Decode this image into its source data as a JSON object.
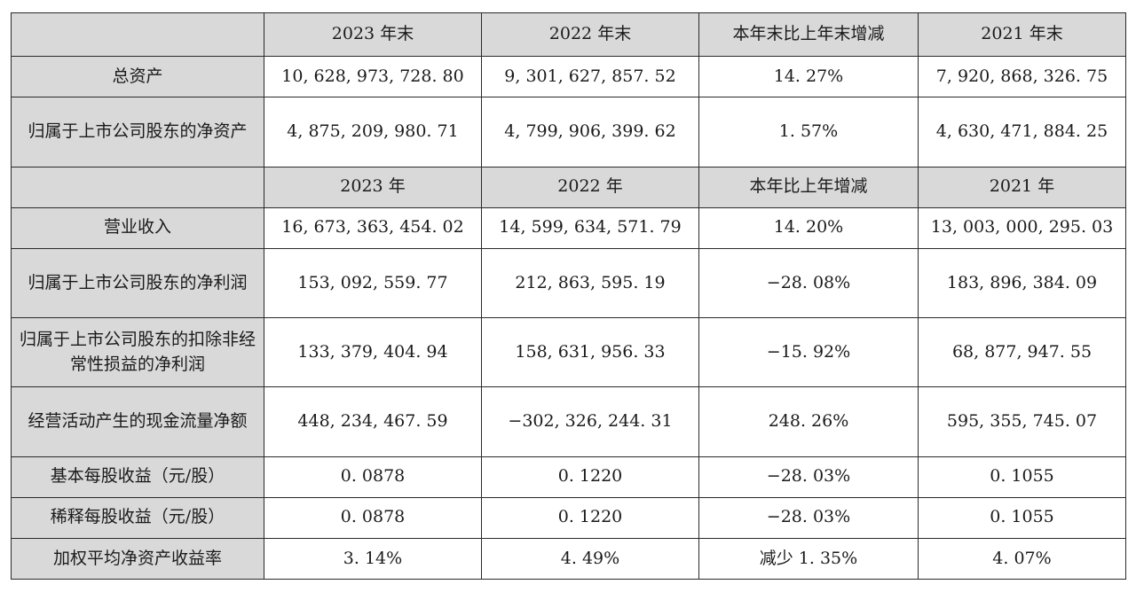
{
  "header1": {
    "corner": "",
    "cols": [
      "2023 年末",
      "2022 年末",
      "本年末比上年末增减",
      "2021 年末"
    ]
  },
  "balance_rows": [
    {
      "label": "总资产",
      "values": [
        "10, 628, 973, 728. 80",
        "9, 301, 627, 857. 52",
        "14. 27%",
        "7, 920, 868, 326. 75"
      ]
    },
    {
      "label": "归属于上市公司股东的净资产",
      "values": [
        "4, 875, 209, 980. 71",
        "4, 799, 906, 399. 62",
        "1. 57%",
        "4, 630, 471, 884. 25"
      ]
    }
  ],
  "header2": {
    "corner": "",
    "cols": [
      "2023 年",
      "2022 年",
      "本年比上年增减",
      "2021 年"
    ]
  },
  "income_rows": [
    {
      "label": "营业收入",
      "values": [
        "16, 673, 363, 454. 02",
        "14, 599, 634, 571. 79",
        "14. 20%",
        "13, 003, 000, 295. 03"
      ]
    },
    {
      "label": "归属于上市公司股东的净利润",
      "values": [
        "153, 092, 559. 77",
        "212, 863, 595. 19",
        "−28. 08%",
        "183, 896, 384. 09"
      ]
    },
    {
      "label": "归属于上市公司股东的扣除非经常性损益的净利润",
      "values": [
        "133, 379, 404. 94",
        "158, 631, 956. 33",
        "−15. 92%",
        "68, 877, 947. 55"
      ]
    },
    {
      "label": "经营活动产生的现金流量净额",
      "values": [
        "448, 234, 467. 59",
        "−302, 326, 244. 31",
        "248. 26%",
        "595, 355, 745. 07"
      ]
    },
    {
      "label": "基本每股收益（元/股）",
      "values": [
        "0. 0878",
        "0. 1220",
        "−28. 03%",
        "0. 1055"
      ]
    },
    {
      "label": "稀释每股收益（元/股）",
      "values": [
        "0. 0878",
        "0. 1220",
        "−28. 03%",
        "0. 1055"
      ]
    },
    {
      "label": "加权平均净资产收益率",
      "values": [
        "3. 14%",
        "4. 49%",
        "减少 1. 35%",
        "4. 07%"
      ]
    }
  ]
}
